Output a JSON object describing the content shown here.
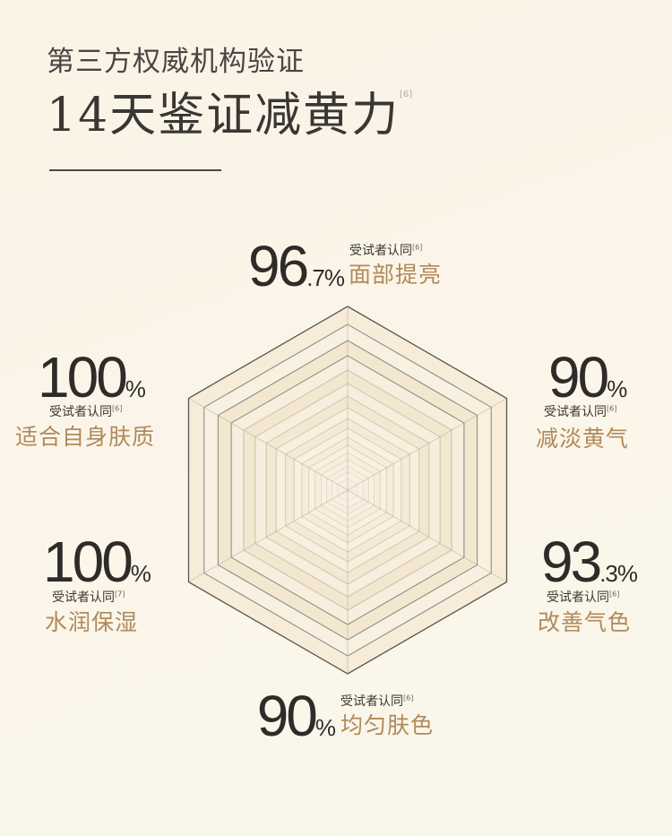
{
  "header": {
    "subtitle": "第三方权威机构验证",
    "title": "14天鉴证减黄力",
    "title_ref": "[6]"
  },
  "colors": {
    "accent": "#b08a5b",
    "text": "#2f2b29",
    "background": "#fbf5e9"
  },
  "stats": [
    {
      "number": "96",
      "decimal": ".7%",
      "note": "受试者认同",
      "ref": "[6]",
      "feature": "面部提亮"
    },
    {
      "number": "100",
      "decimal": "%",
      "note": "受试者认同",
      "ref": "[6]",
      "feature": "适合自身肤质"
    },
    {
      "number": "90",
      "decimal": "%",
      "note": "受试者认同",
      "ref": "[6]",
      "feature": "减淡黄气"
    },
    {
      "number": "100",
      "decimal": "%",
      "note": "受试者认同",
      "ref": "[7]",
      "feature": "水润保湿"
    },
    {
      "number": "93",
      "decimal": ".3%",
      "note": "受试者认同",
      "ref": "[6]",
      "feature": "改善气色"
    },
    {
      "number": "90",
      "decimal": "%",
      "note": "受试者认同",
      "ref": "[6]",
      "feature": "均匀肤色"
    }
  ]
}
